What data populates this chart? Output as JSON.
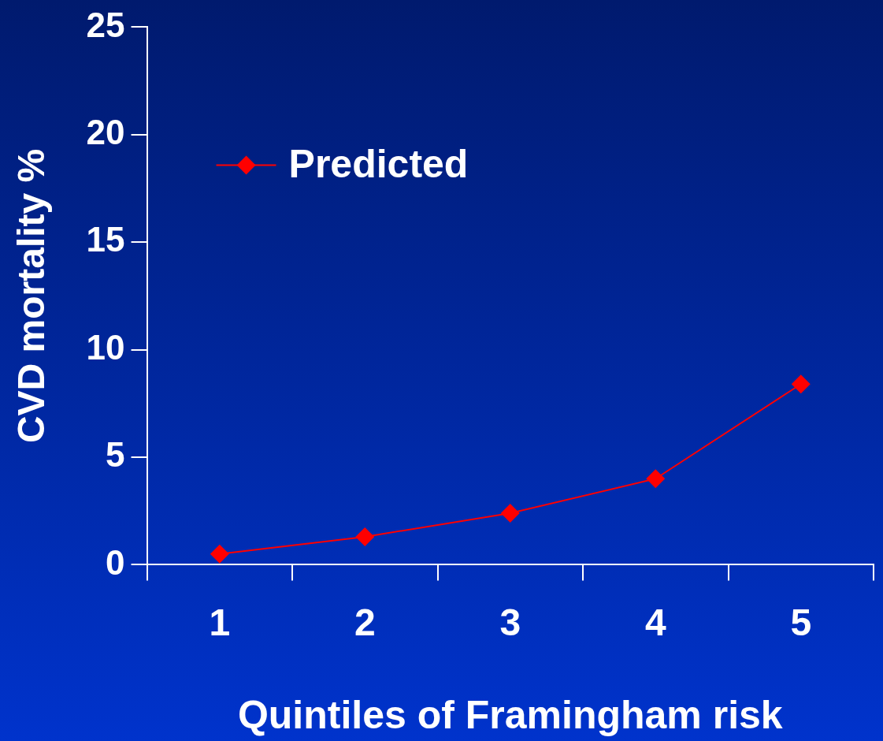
{
  "chart_data": {
    "type": "line",
    "xlabel": "Quintiles of Framingham risk",
    "ylabel": "CVD mortality %",
    "categories": [
      "1",
      "2",
      "3",
      "4",
      "5"
    ],
    "series": [
      {
        "name": "Predicted",
        "color": "#ff0000",
        "values": [
          0.5,
          1.3,
          2.4,
          4.0,
          8.4
        ]
      }
    ],
    "ylim": [
      0,
      25
    ],
    "yticks": [
      0,
      5,
      10,
      15,
      20,
      25
    ],
    "grid": false,
    "legend": "top left",
    "marker": "diamond",
    "line_style": "solid"
  }
}
